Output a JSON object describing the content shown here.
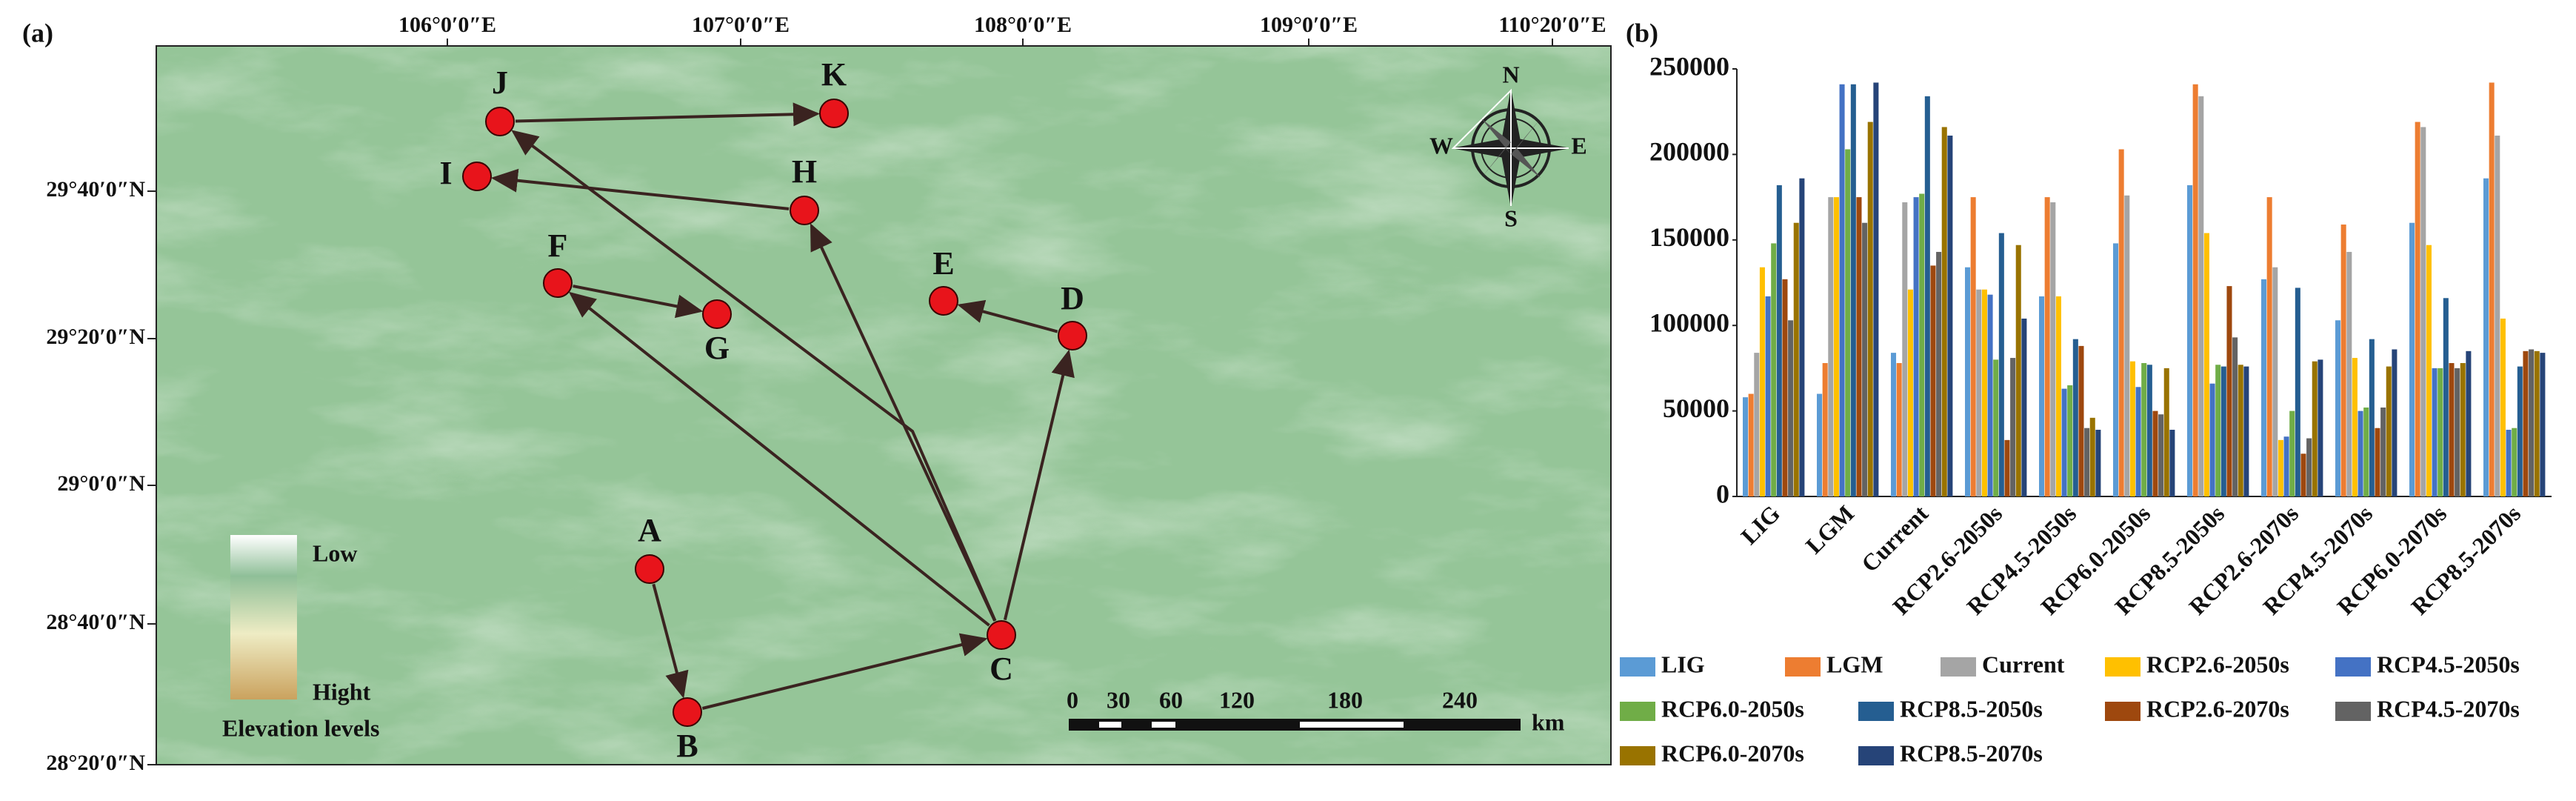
{
  "panel_labels": [
    "(a)",
    "(b)"
  ],
  "map": {
    "longitude_labels": [
      "106°0′0″E",
      "107°0′0″E",
      "108°0′0″E",
      "109°0′0″E",
      "110°20′0″E"
    ],
    "latitude_labels": [
      "29°40′0″N",
      "29°20′0″N",
      "29°0′0″N",
      "28°40′0″N",
      "28°20′0″N"
    ],
    "sites": [
      "A",
      "B",
      "C",
      "D",
      "E",
      "F",
      "G",
      "H",
      "I",
      "J",
      "K"
    ],
    "elevation_legend": {
      "low": "Low",
      "high": "Hight",
      "title": "Elevation levels"
    },
    "scale_bar": {
      "labels": [
        0,
        30,
        60,
        120,
        180,
        240
      ],
      "unit": "km"
    },
    "compass": [
      "N",
      "E",
      "S",
      "W"
    ]
  },
  "chart_data": {
    "type": "bar",
    "categories": [
      "LIG",
      "LGM",
      "Current",
      "RCP2.6-2050s",
      "RCP4.5-2050s",
      "RCP6.0-2050s",
      "RCP8.5-2050s",
      "RCP2.6-2070s",
      "RCP4.5-2070s",
      "RCP6.0-2070s",
      "RCP8.5-2070s"
    ],
    "series": [
      {
        "name": "LIG",
        "color": "#5b9bd5",
        "values": [
          58000,
          60000,
          84000,
          134000,
          117000,
          148000,
          182000,
          127000,
          103000,
          160000,
          186000
        ]
      },
      {
        "name": "LGM",
        "color": "#ed7d31",
        "values": [
          60000,
          78000,
          78000,
          175000,
          175000,
          203000,
          241000,
          175000,
          159000,
          219000,
          242000
        ]
      },
      {
        "name": "Current",
        "color": "#a5a5a5",
        "values": [
          84000,
          175000,
          172000,
          121000,
          172000,
          176000,
          234000,
          134000,
          143000,
          216000,
          211000
        ]
      },
      {
        "name": "RCP2.6-2050s",
        "color": "#ffc000",
        "values": [
          134000,
          175000,
          121000,
          121000,
          117000,
          79000,
          154000,
          33000,
          81000,
          147000,
          104000
        ]
      },
      {
        "name": "RCP4.5-2050s",
        "color": "#4472c4",
        "values": [
          117000,
          241000,
          175000,
          118000,
          63000,
          64000,
          66000,
          35000,
          50000,
          75000,
          39000
        ]
      },
      {
        "name": "RCP6.0-2050s",
        "color": "#70ad47",
        "values": [
          148000,
          203000,
          177000,
          80000,
          65000,
          78000,
          77000,
          50000,
          52000,
          75000,
          40000
        ]
      },
      {
        "name": "RCP8.5-2050s",
        "color": "#255e91",
        "values": [
          182000,
          241000,
          234000,
          154000,
          92000,
          77000,
          76000,
          122000,
          92000,
          116000,
          76000
        ]
      },
      {
        "name": "RCP2.6-2070s",
        "color": "#9e480e",
        "values": [
          127000,
          175000,
          135000,
          33000,
          88000,
          50000,
          123000,
          25000,
          40000,
          78000,
          85000
        ]
      },
      {
        "name": "RCP4.5-2070s",
        "color": "#636363",
        "values": [
          103000,
          160000,
          143000,
          81000,
          40000,
          48000,
          93000,
          34000,
          52000,
          75000,
          86000
        ]
      },
      {
        "name": "RCP6.0-2070s",
        "color": "#997300",
        "values": [
          160000,
          219000,
          216000,
          147000,
          46000,
          75000,
          77000,
          79000,
          76000,
          78000,
          85000
        ]
      },
      {
        "name": "RCP8.5-2070s",
        "color": "#264478",
        "values": [
          186000,
          242000,
          211000,
          104000,
          39000,
          39000,
          76000,
          80000,
          86000,
          85000,
          84000
        ]
      }
    ],
    "ylim": [
      0,
      250000
    ],
    "yticks": [
      0,
      50000,
      100000,
      150000,
      200000,
      250000
    ],
    "grid": false,
    "legend": "bottom"
  }
}
